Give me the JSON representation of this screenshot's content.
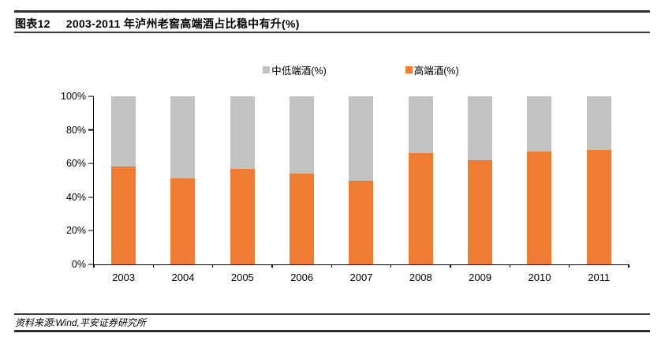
{
  "header": {
    "figure_label": "图表12",
    "title": "2003-2011 年泸州老窖高端酒占比稳中有升(%)"
  },
  "legend": [
    {
      "label": "中低端酒(%)",
      "color": "#c2c2c2"
    },
    {
      "label": "高端酒(%)",
      "color": "#ee7c33"
    }
  ],
  "chart_data": {
    "type": "bar",
    "stacked": true,
    "title": "2003-2011 年泸州老窖高端酒占比稳中有升(%)",
    "xlabel": "",
    "ylabel": "",
    "categories": [
      "2003",
      "2004",
      "2005",
      "2006",
      "2007",
      "2008",
      "2009",
      "2010",
      "2011"
    ],
    "series": [
      {
        "name": "高端酒(%)",
        "color": "#ee7c33",
        "values": [
          58,
          51,
          57,
          54,
          50,
          66,
          62,
          67,
          68
        ]
      },
      {
        "name": "中低端酒(%)",
        "color": "#c2c2c2",
        "values": [
          42,
          49,
          43,
          46,
          50,
          34,
          38,
          33,
          32
        ]
      }
    ],
    "ylim": [
      0,
      100
    ],
    "y_tick_labels": [
      "0%",
      "20%",
      "40%",
      "60%",
      "80%",
      "100%"
    ],
    "grid": false,
    "legend_position": "top-center"
  },
  "footer": {
    "source": "资料来源:Wind,平安证券研究所"
  }
}
